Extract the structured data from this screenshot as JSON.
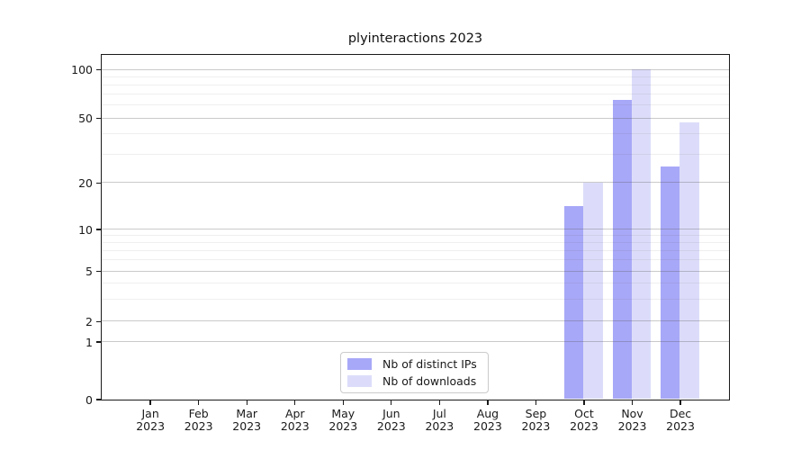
{
  "title": "plyinteractions 2023",
  "chart_data": {
    "type": "bar",
    "title": "plyinteractions 2023",
    "x_months": [
      "Jan",
      "Feb",
      "Mar",
      "Apr",
      "May",
      "Jun",
      "Jul",
      "Aug",
      "Sep",
      "Oct",
      "Nov",
      "Dec"
    ],
    "x_year": "2023",
    "series": [
      {
        "name": "Nb of distinct IPs",
        "color": "#a8a8f8",
        "values": [
          0,
          0,
          0,
          0,
          0,
          0,
          0,
          0,
          0,
          14,
          65,
          25
        ]
      },
      {
        "name": "Nb of downloads",
        "color": "#dcdcfa",
        "values": [
          0,
          0,
          0,
          0,
          0,
          0,
          0,
          0,
          0,
          20,
          100,
          47
        ]
      }
    ],
    "y_major_ticks": [
      0,
      1,
      2,
      5,
      10,
      20,
      50,
      100
    ],
    "y_minor_gridlines": [
      3,
      4,
      6,
      7,
      8,
      9,
      30,
      40,
      60,
      70,
      80,
      90
    ],
    "y_scale": "log-like (symlog, linear below 1)",
    "ylim": [
      0,
      140
    ],
    "grid": true,
    "legend_position": "bottom-center"
  },
  "legend": {
    "items": [
      {
        "label": "Nb of distinct IPs",
        "color": "#a8a8f8"
      },
      {
        "label": "Nb of downloads",
        "color": "#dcdcfa"
      }
    ]
  },
  "colors": {
    "ips_bar": "#a8a8f8",
    "downloads_bar": "#dcdcfa",
    "grid_major": "#cacaca",
    "grid_minor": "#efefef",
    "axis": "#1a1a1a",
    "background": "#ffffff"
  }
}
